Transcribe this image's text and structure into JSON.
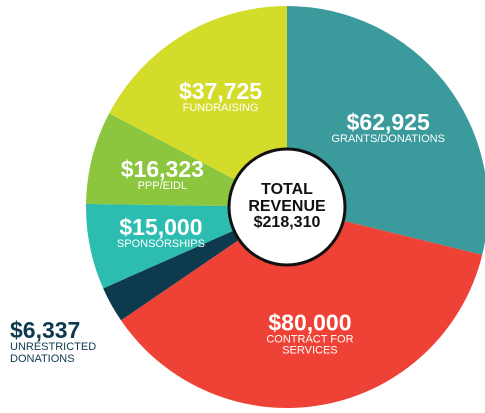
{
  "chart_data": {
    "type": "pie",
    "title": "TOTAL REVENUE",
    "total": 218310,
    "total_label": "$218,310",
    "categories": [
      "GRANTS/DONATIONS",
      "CONTRACT FOR SERVICES",
      "UNRESTRICTED DONATIONS",
      "SPONSORSHIPS",
      "PPP/EIDL",
      "FUNDRAISING"
    ],
    "values": [
      62925,
      80000,
      6337,
      15000,
      16323,
      37725
    ],
    "value_labels": [
      "$62,925",
      "$80,000",
      "$6,337",
      "$15,000",
      "$16,323",
      "$37,725"
    ],
    "colors": [
      "#3b9b9c",
      "#ef4237",
      "#0e3a4e",
      "#2dbdb0",
      "#8cc63f",
      "#d3dc2b"
    ]
  }
}
